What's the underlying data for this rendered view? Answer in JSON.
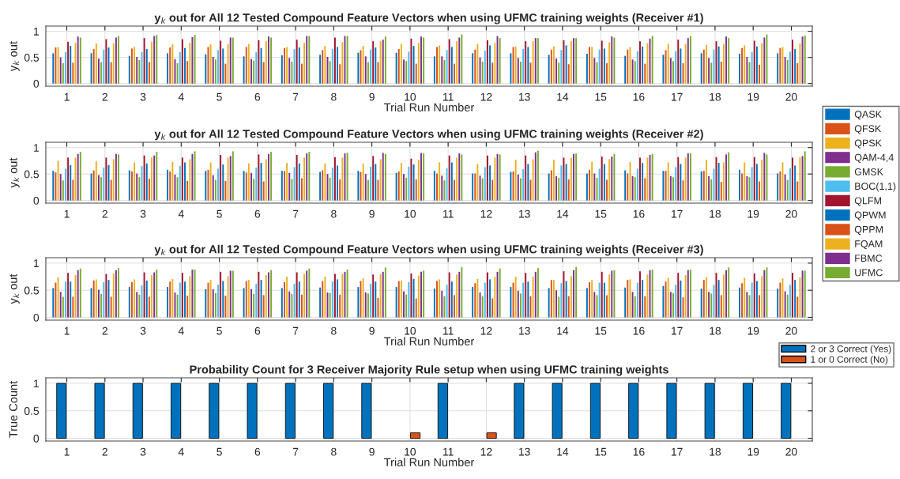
{
  "chart_data": [
    {
      "type": "bar",
      "title": "y$_{k}$ out for All 12 Tested Compound Feature Vectors when using UFMC training weights (Receiver #1)",
      "xlabel": "Trial Run Number",
      "ylabel": "y$_{k}$ out",
      "categories": [
        "1",
        "2",
        "3",
        "4",
        "5",
        "6",
        "7",
        "8",
        "9",
        "10",
        "11",
        "12",
        "13",
        "14",
        "15",
        "16",
        "17",
        "18",
        "19",
        "20"
      ],
      "ylim": [
        -0.05,
        1.1
      ],
      "yticks": [
        0,
        0.5,
        1
      ],
      "grid": true,
      "legend": "right",
      "series": [
        {
          "name": "QASK",
          "color": "#0072bd",
          "values": [
            0.58,
            0.58,
            0.53,
            0.58,
            0.56,
            0.52,
            0.54,
            0.55,
            0.59,
            0.59,
            0.52,
            0.58,
            0.58,
            0.55,
            0.57,
            0.53,
            0.55,
            0.58,
            0.57,
            0.58
          ]
        },
        {
          "name": "QFSK",
          "color": "#d95319",
          "values": [
            0.69,
            0.66,
            0.67,
            0.69,
            0.7,
            0.7,
            0.68,
            0.64,
            0.64,
            0.66,
            0.7,
            0.65,
            0.7,
            0.65,
            0.7,
            0.65,
            0.64,
            0.65,
            0.68,
            0.68
          ]
        },
        {
          "name": "QPSK",
          "color": "#edb120",
          "values": [
            0.7,
            0.77,
            0.7,
            0.75,
            0.75,
            0.76,
            0.7,
            0.72,
            0.72,
            0.76,
            0.73,
            0.76,
            0.71,
            0.71,
            0.7,
            0.7,
            0.76,
            0.74,
            0.73,
            0.7
          ]
        },
        {
          "name": "QAM-4,4",
          "color": "#7e2f8e",
          "values": [
            0.5,
            0.48,
            0.51,
            0.47,
            0.51,
            0.47,
            0.49,
            0.51,
            0.52,
            0.46,
            0.52,
            0.5,
            0.49,
            0.48,
            0.49,
            0.46,
            0.49,
            0.49,
            0.51,
            0.51
          ]
        },
        {
          "name": "GMSK",
          "color": "#77ac30",
          "values": [
            0.39,
            0.41,
            0.45,
            0.39,
            0.46,
            0.44,
            0.42,
            0.43,
            0.41,
            0.43,
            0.45,
            0.42,
            0.42,
            0.4,
            0.41,
            0.43,
            0.43,
            0.4,
            0.41,
            0.45
          ]
        },
        {
          "name": "BOC(1,1)",
          "color": "#4dbeee",
          "values": [
            0.6,
            0.65,
            0.6,
            0.6,
            0.64,
            0.6,
            0.66,
            0.66,
            0.65,
            0.61,
            0.64,
            0.63,
            0.66,
            0.64,
            0.65,
            0.62,
            0.62,
            0.65,
            0.6,
            0.61
          ]
        },
        {
          "name": "QLFM",
          "color": "#a2142f",
          "values": [
            0.8,
            0.85,
            0.87,
            0.85,
            0.82,
            0.83,
            0.84,
            0.88,
            0.81,
            0.86,
            0.85,
            0.83,
            0.81,
            0.83,
            0.82,
            0.81,
            0.84,
            0.81,
            0.82,
            0.84
          ]
        },
        {
          "name": "QPWM",
          "color": "#0072bd",
          "values": [
            0.72,
            0.69,
            0.66,
            0.68,
            0.67,
            0.68,
            0.69,
            0.7,
            0.69,
            0.72,
            0.7,
            0.73,
            0.7,
            0.73,
            0.67,
            0.71,
            0.67,
            0.71,
            0.71,
            0.66
          ]
        },
        {
          "name": "QPPM",
          "color": "#d95319",
          "values": [
            0.4,
            0.41,
            0.41,
            0.43,
            0.38,
            0.41,
            0.38,
            0.37,
            0.41,
            0.38,
            0.38,
            0.4,
            0.4,
            0.37,
            0.39,
            0.38,
            0.39,
            0.42,
            0.36,
            0.39
          ]
        },
        {
          "name": "FQAM",
          "color": "#edb120",
          "values": [
            0.78,
            0.77,
            0.8,
            0.78,
            0.76,
            0.81,
            0.78,
            0.79,
            0.81,
            0.78,
            0.81,
            0.78,
            0.81,
            0.81,
            0.79,
            0.77,
            0.76,
            0.76,
            0.77,
            0.77
          ]
        },
        {
          "name": "FBMC",
          "color": "#7e2f8e",
          "values": [
            0.9,
            0.88,
            0.91,
            0.89,
            0.88,
            0.9,
            0.91,
            0.91,
            0.84,
            0.9,
            0.88,
            0.91,
            0.87,
            0.87,
            0.9,
            0.86,
            0.87,
            0.9,
            0.88,
            0.9
          ]
        },
        {
          "name": "UFMC",
          "color": "#77ac30",
          "values": [
            0.88,
            0.91,
            0.93,
            0.93,
            0.88,
            0.88,
            0.91,
            0.91,
            0.9,
            0.88,
            0.94,
            0.87,
            0.87,
            0.87,
            0.88,
            0.91,
            0.91,
            0.87,
            0.94,
            0.92
          ]
        }
      ]
    },
    {
      "type": "bar",
      "title": "y$_{k}$ out for All 12 Tested Compound Feature Vectors when using UFMC training weights (Receiver #2)",
      "ylabel": "y$_{k}$ out",
      "categories": [
        "1",
        "2",
        "3",
        "4",
        "5",
        "6",
        "7",
        "8",
        "9",
        "10",
        "11",
        "12",
        "13",
        "14",
        "15",
        "16",
        "17",
        "18",
        "19",
        "20"
      ],
      "ylim": [
        -0.05,
        1.1
      ],
      "yticks": [
        0,
        0.5,
        1
      ],
      "grid": true,
      "series": [
        {
          "color": "#0072bd",
          "values": [
            0.56,
            0.51,
            0.57,
            0.58,
            0.56,
            0.56,
            0.56,
            0.54,
            0.56,
            0.52,
            0.56,
            0.51,
            0.54,
            0.51,
            0.51,
            0.57,
            0.56,
            0.55,
            0.58,
            0.51
          ]
        },
        {
          "color": "#d95319",
          "values": [
            0.53,
            0.57,
            0.55,
            0.55,
            0.58,
            0.53,
            0.56,
            0.57,
            0.54,
            0.55,
            0.51,
            0.51,
            0.55,
            0.57,
            0.58,
            0.51,
            0.56,
            0.56,
            0.51,
            0.55
          ]
        },
        {
          "color": "#edb120",
          "values": [
            0.75,
            0.74,
            0.72,
            0.73,
            0.72,
            0.7,
            0.71,
            0.7,
            0.7,
            0.71,
            0.72,
            0.69,
            0.77,
            0.77,
            0.73,
            0.73,
            0.72,
            0.77,
            0.72,
            0.72
          ]
        },
        {
          "color": "#7e2f8e",
          "values": [
            0.5,
            0.48,
            0.51,
            0.49,
            0.48,
            0.52,
            0.52,
            0.5,
            0.5,
            0.5,
            0.47,
            0.47,
            0.49,
            0.46,
            0.51,
            0.46,
            0.46,
            0.46,
            0.46,
            0.49
          ]
        },
        {
          "color": "#77ac30",
          "values": [
            0.38,
            0.44,
            0.44,
            0.44,
            0.39,
            0.41,
            0.41,
            0.43,
            0.39,
            0.43,
            0.38,
            0.42,
            0.42,
            0.43,
            0.43,
            0.44,
            0.44,
            0.4,
            0.44,
            0.39
          ]
        },
        {
          "color": "#4dbeee",
          "values": [
            0.6,
            0.62,
            0.65,
            0.65,
            0.6,
            0.62,
            0.63,
            0.62,
            0.64,
            0.64,
            0.61,
            0.63,
            0.59,
            0.66,
            0.6,
            0.6,
            0.63,
            0.6,
            0.63,
            0.61
          ]
        },
        {
          "color": "#a2142f",
          "values": [
            0.81,
            0.81,
            0.85,
            0.81,
            0.86,
            0.87,
            0.86,
            0.82,
            0.84,
            0.79,
            0.85,
            0.85,
            0.85,
            0.81,
            0.83,
            0.81,
            0.82,
            0.82,
            0.82,
            0.81
          ]
        },
        {
          "color": "#0072bd",
          "values": [
            0.67,
            0.67,
            0.7,
            0.72,
            0.68,
            0.71,
            0.7,
            0.66,
            0.69,
            0.68,
            0.72,
            0.66,
            0.69,
            0.69,
            0.69,
            0.71,
            0.69,
            0.71,
            0.69,
            0.66
          ]
        },
        {
          "color": "#d95319",
          "values": [
            0.39,
            0.39,
            0.41,
            0.37,
            0.37,
            0.36,
            0.42,
            0.4,
            0.39,
            0.4,
            0.39,
            0.39,
            0.39,
            0.4,
            0.39,
            0.42,
            0.38,
            0.35,
            0.36,
            0.36
          ]
        },
        {
          "color": "#edb120",
          "values": [
            0.81,
            0.78,
            0.81,
            0.78,
            0.81,
            0.78,
            0.81,
            0.81,
            0.78,
            0.77,
            0.81,
            0.81,
            0.78,
            0.81,
            0.78,
            0.81,
            0.81,
            0.72,
            0.77,
            0.82
          ]
        },
        {
          "color": "#7e2f8e",
          "values": [
            0.88,
            0.88,
            0.85,
            0.88,
            0.84,
            0.88,
            0.89,
            0.89,
            0.9,
            0.9,
            0.89,
            0.88,
            0.91,
            0.88,
            0.83,
            0.86,
            0.89,
            0.87,
            0.9,
            0.84
          ]
        },
        {
          "color": "#77ac30",
          "values": [
            0.92,
            0.87,
            0.92,
            0.93,
            0.93,
            0.92,
            0.92,
            0.9,
            0.88,
            0.89,
            0.87,
            0.87,
            0.94,
            0.89,
            0.88,
            0.88,
            0.89,
            0.91,
            0.87,
            0.93
          ]
        }
      ]
    },
    {
      "type": "bar",
      "title": "y$_{k}$ out for All 12 Tested Compound Feature Vectors when using UFMC training weights (Receiver #3)",
      "xlabel": "Trial Run Number",
      "ylabel": "y$_{k}$ out",
      "categories": [
        "1",
        "2",
        "3",
        "4",
        "5",
        "6",
        "7",
        "8",
        "9",
        "10",
        "11",
        "12",
        "13",
        "14",
        "15",
        "16",
        "17",
        "18",
        "19",
        "20"
      ],
      "ylim": [
        -0.05,
        1.1
      ],
      "yticks": [
        0,
        0.5,
        1
      ],
      "grid": true,
      "series": [
        {
          "color": "#0072bd",
          "values": [
            0.54,
            0.54,
            0.56,
            0.56,
            0.52,
            0.54,
            0.54,
            0.55,
            0.56,
            0.56,
            0.53,
            0.56,
            0.56,
            0.54,
            0.54,
            0.55,
            0.58,
            0.53,
            0.55,
            0.53
          ]
        },
        {
          "color": "#d95319",
          "values": [
            0.64,
            0.68,
            0.65,
            0.66,
            0.64,
            0.67,
            0.65,
            0.67,
            0.67,
            0.67,
            0.67,
            0.63,
            0.64,
            0.69,
            0.65,
            0.69,
            0.66,
            0.69,
            0.63,
            0.64
          ]
        },
        {
          "color": "#edb120",
          "values": [
            0.74,
            0.7,
            0.7,
            0.71,
            0.69,
            0.69,
            0.75,
            0.75,
            0.72,
            0.68,
            0.7,
            0.71,
            0.75,
            0.69,
            0.69,
            0.7,
            0.73,
            0.74,
            0.73,
            0.72
          ]
        },
        {
          "color": "#7e2f8e",
          "values": [
            0.47,
            0.51,
            0.47,
            0.46,
            0.52,
            0.52,
            0.48,
            0.46,
            0.46,
            0.48,
            0.49,
            0.46,
            0.49,
            0.5,
            0.47,
            0.47,
            0.47,
            0.47,
            0.47,
            0.48
          ]
        },
        {
          "color": "#77ac30",
          "values": [
            0.38,
            0.43,
            0.42,
            0.42,
            0.45,
            0.43,
            0.43,
            0.45,
            0.44,
            0.42,
            0.39,
            0.39,
            0.44,
            0.38,
            0.41,
            0.39,
            0.45,
            0.44,
            0.41,
            0.42
          ]
        },
        {
          "color": "#4dbeee",
          "values": [
            0.66,
            0.65,
            0.59,
            0.64,
            0.6,
            0.62,
            0.62,
            0.66,
            0.62,
            0.65,
            0.6,
            0.64,
            0.64,
            0.63,
            0.64,
            0.64,
            0.6,
            0.6,
            0.64,
            0.6
          ]
        },
        {
          "color": "#a2142f",
          "values": [
            0.82,
            0.8,
            0.83,
            0.82,
            0.84,
            0.84,
            0.83,
            0.8,
            0.79,
            0.81,
            0.83,
            0.83,
            0.82,
            0.85,
            0.84,
            0.85,
            0.82,
            0.82,
            0.81,
            0.82
          ]
        },
        {
          "color": "#0072bd",
          "values": [
            0.66,
            0.69,
            0.68,
            0.66,
            0.67,
            0.69,
            0.66,
            0.7,
            0.66,
            0.71,
            0.66,
            0.7,
            0.66,
            0.67,
            0.64,
            0.69,
            0.68,
            0.69,
            0.67,
            0.69
          ]
        },
        {
          "color": "#d95319",
          "values": [
            0.38,
            0.38,
            0.38,
            0.4,
            0.4,
            0.41,
            0.42,
            0.42,
            0.36,
            0.35,
            0.41,
            0.35,
            0.39,
            0.39,
            0.41,
            0.39,
            0.37,
            0.41,
            0.41,
            0.38
          ]
        },
        {
          "color": "#edb120",
          "values": [
            0.78,
            0.81,
            0.78,
            0.76,
            0.76,
            0.78,
            0.8,
            0.8,
            0.8,
            0.77,
            0.79,
            0.75,
            0.75,
            0.76,
            0.79,
            0.79,
            0.78,
            0.79,
            0.76,
            0.74
          ]
        },
        {
          "color": "#7e2f8e",
          "values": [
            0.87,
            0.87,
            0.83,
            0.88,
            0.86,
            0.83,
            0.86,
            0.84,
            0.84,
            0.84,
            0.84,
            0.84,
            0.84,
            0.87,
            0.86,
            0.87,
            0.87,
            0.87,
            0.87,
            0.86
          ]
        },
        {
          "color": "#77ac30",
          "values": [
            0.9,
            0.91,
            0.88,
            0.88,
            0.86,
            0.87,
            0.9,
            0.88,
            0.92,
            0.86,
            0.93,
            0.9,
            0.91,
            0.93,
            0.87,
            0.88,
            0.88,
            0.92,
            0.92,
            0.86
          ]
        }
      ]
    },
    {
      "type": "bar",
      "title": "Probability Count for 3 Receiver Majority Rule setup when using UFMC training weights",
      "xlabel": "Trial Run Number",
      "ylabel": "True Count",
      "categories": [
        "1",
        "2",
        "3",
        "4",
        "5",
        "6",
        "7",
        "8",
        "9",
        "10",
        "11",
        "12",
        "13",
        "14",
        "15",
        "16",
        "17",
        "18",
        "19",
        "20"
      ],
      "ylim": [
        -0.05,
        1.1
      ],
      "yticks": [
        0,
        0.5,
        1
      ],
      "grid": true,
      "legend": "top right",
      "series": [
        {
          "name": "2 or 3 Correct (Yes)",
          "color": "#0072bd",
          "values": [
            1,
            1,
            1,
            1,
            1,
            1,
            1,
            1,
            1,
            0,
            1,
            0,
            1,
            1,
            1,
            1,
            1,
            1,
            1,
            1
          ]
        },
        {
          "name": "1 or 0 Correct (No)",
          "color": "#d95319",
          "values": [
            0,
            0,
            0,
            0,
            0,
            0,
            0,
            0,
            0,
            0.1,
            0,
            0.1,
            0,
            0,
            0,
            0,
            0,
            0,
            0,
            0
          ]
        }
      ]
    }
  ]
}
